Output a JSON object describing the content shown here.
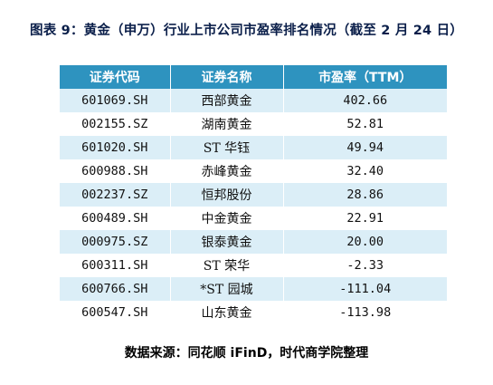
{
  "title": "图表 9：黄金（申万）行业上市公司市盈率排名情况（截至 2 月 24 日）",
  "table": {
    "headers": [
      "证券代码",
      "证券名称",
      "市盈率（TTM）"
    ],
    "rows": [
      {
        "code": "601069.SH",
        "name": "西部黄金",
        "pe": "402.66"
      },
      {
        "code": "002155.SZ",
        "name": "湖南黄金",
        "pe": "52.81"
      },
      {
        "code": "601020.SH",
        "name": "ST 华钰",
        "pe": "49.94"
      },
      {
        "code": "600988.SH",
        "name": "赤峰黄金",
        "pe": "32.40"
      },
      {
        "code": "002237.SZ",
        "name": "恒邦股份",
        "pe": "28.86"
      },
      {
        "code": "600489.SH",
        "name": "中金黄金",
        "pe": "22.91"
      },
      {
        "code": "000975.SZ",
        "name": "银泰黄金",
        "pe": "20.00"
      },
      {
        "code": "600311.SH",
        "name": "ST 荣华",
        "pe": "-2.33"
      },
      {
        "code": "600766.SH",
        "name": "*ST 园城",
        "pe": "-111.04"
      },
      {
        "code": "600547.SH",
        "name": "山东黄金",
        "pe": "-113.98"
      }
    ]
  },
  "source": "数据来源：同花顺 iFinD，时代商学院整理",
  "colors": {
    "header_bg": "#2e93bf",
    "stripe_bg": "#dbeef7",
    "title_color": "#0b1f4a"
  }
}
